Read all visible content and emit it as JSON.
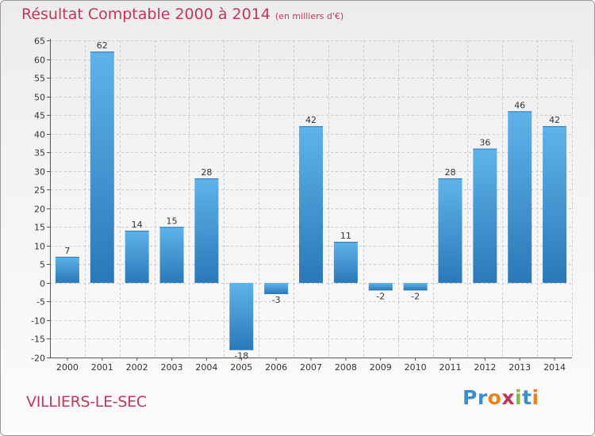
{
  "title": "Résultat Comptable 2000 à 2014",
  "subtitle": "(en milliers d'€)",
  "commune": "VILLIERS-LE-SEC",
  "logo": {
    "text": "Proxiti",
    "letters": [
      {
        "ch": "P",
        "color": "#3a8fd1"
      },
      {
        "ch": "r",
        "color": "#3a8fd1"
      },
      {
        "ch": "o",
        "color": "#e8831f"
      },
      {
        "ch": "x",
        "color": "#c1365b"
      },
      {
        "ch": "i",
        "color": "#8ab93a"
      },
      {
        "ch": "t",
        "color": "#3a8fd1"
      },
      {
        "ch": "i",
        "color": "#e8831f"
      }
    ]
  },
  "colors": {
    "bar_light": "#5fb3ea",
    "bar_dark": "#2a78b8",
    "title": "#c1365b",
    "grid": "#c8c8c8"
  },
  "chart_data": {
    "type": "bar",
    "categories": [
      "2000",
      "2001",
      "2002",
      "2003",
      "2004",
      "2005",
      "2006",
      "2007",
      "2008",
      "2009",
      "2010",
      "2011",
      "2012",
      "2013",
      "2014"
    ],
    "values": [
      7,
      62,
      14,
      15,
      28,
      -18,
      -3,
      42,
      11,
      -2,
      -2,
      28,
      36,
      46,
      42
    ],
    "labels": [
      "7",
      "62",
      "14",
      "15",
      "28",
      "-18",
      "-3",
      "42",
      "11",
      "-2",
      "-2",
      "28",
      "36",
      "46",
      "42"
    ],
    "ylim": [
      -20,
      65
    ],
    "yticks": [
      65,
      60,
      55,
      50,
      45,
      40,
      35,
      30,
      25,
      20,
      15,
      10,
      5,
      0,
      -5,
      -10,
      -15,
      -20
    ],
    "ytick_labels": [
      "65",
      "60",
      "55",
      "50",
      "45",
      "40",
      "35",
      "30",
      "25",
      "20",
      "15",
      "10",
      "5",
      "0",
      "-5",
      "-10",
      "-15",
      "-20"
    ],
    "grid": true,
    "legend": "none"
  }
}
